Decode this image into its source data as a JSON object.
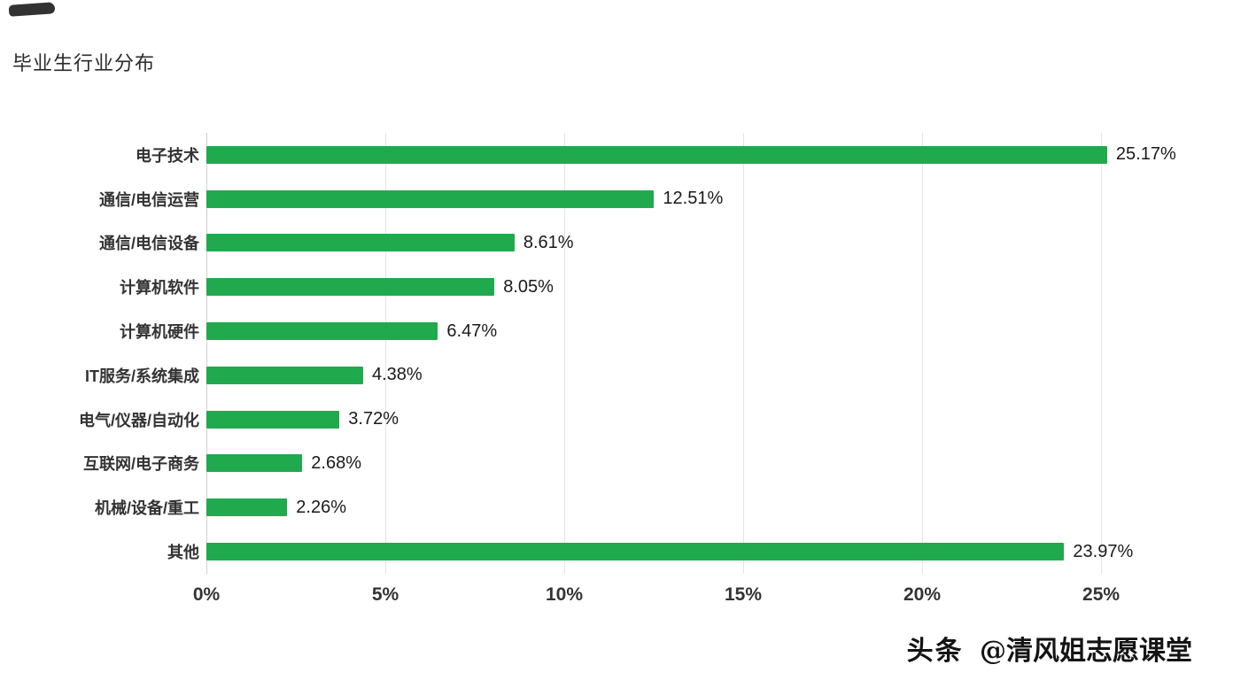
{
  "page": {
    "title": "毕业生行业分布",
    "watermark": {
      "brand": "头条",
      "handle": "@清风姐志愿课堂"
    }
  },
  "chart_data": {
    "type": "bar",
    "orientation": "horizontal",
    "title": "毕业生行业分布",
    "categories": [
      "电子技术",
      "通信/电信运营",
      "通信/电信设备",
      "计算机软件",
      "计算机硬件",
      "IT服务/系统集成",
      "电气/仪器/自动化",
      "互联网/电子商务",
      "机械/设备/重工",
      "其他"
    ],
    "values": [
      25.17,
      12.51,
      8.61,
      8.05,
      6.47,
      4.38,
      3.72,
      2.68,
      2.26,
      23.97
    ],
    "value_labels": [
      "25.17%",
      "12.51%",
      "8.61%",
      "8.05%",
      "6.47%",
      "4.38%",
      "3.72%",
      "2.68%",
      "2.26%",
      "23.97%"
    ],
    "x_ticks": [
      0,
      5,
      10,
      15,
      20,
      25
    ],
    "x_tick_labels": [
      "0%",
      "5%",
      "10%",
      "15%",
      "20%",
      "25%"
    ],
    "xlim": [
      0,
      27.4
    ],
    "xlabel": "",
    "ylabel": "",
    "bar_color": "#21a94e",
    "grid": true,
    "legend": false,
    "background_color": "#ffffff"
  }
}
